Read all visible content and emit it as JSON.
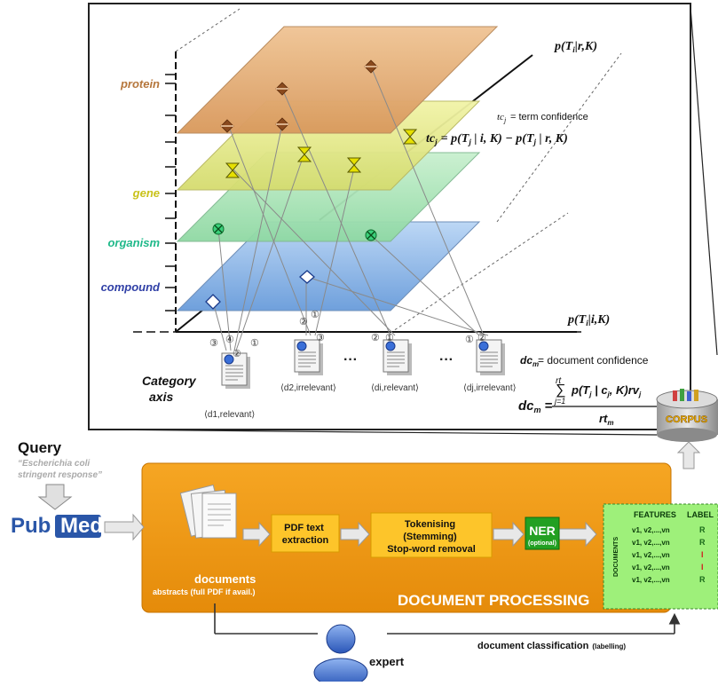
{
  "category_axis": {
    "title_line1": "Category",
    "title_line2": "axis",
    "categories": [
      {
        "label": "protein",
        "color": "#b5763c"
      },
      {
        "label": "gene",
        "color": "#c9c21a"
      },
      {
        "label": "organism",
        "color": "#20b98a"
      },
      {
        "label": "compound",
        "color": "#2f3fa6"
      }
    ]
  },
  "formulas": {
    "p_relevant": "p(T",
    "p_relevant_sub": "i",
    "p_relevant_tail": "|r,K)",
    "p_irrelevant": "p(T",
    "p_irrelevant_sub": "i",
    "p_irrelevant_tail": "|i,K)",
    "tc_def": "= term confidence",
    "tc_symbol": "tc",
    "tc_sub": "j",
    "tc_formula": "= p(T",
    "tc_formula_mid": " | i, K) − p(T",
    "tc_formula_tail": " | r, K)",
    "dc_def": "= document confidence",
    "dc_symbol": "dc",
    "dc_sub": "m",
    "dc_numerator": "p(T",
    "dc_numerator_tail": " | c",
    "dc_numerator_end": ", K)rv",
    "dc_sum_top": "rt",
    "dc_sum_bottom": "j=1",
    "dc_denominator": "rt"
  },
  "documents": [
    {
      "label": "⟨d1,relevant⟩",
      "markers": [
        "③",
        "④",
        "②",
        "①"
      ]
    },
    {
      "label": "⟨d2,irrelevant⟩",
      "markers": [
        "②",
        "①",
        "③"
      ]
    },
    {
      "label": "⟨di,relevant⟩",
      "markers": [
        "②",
        "①"
      ]
    },
    {
      "label": "⟨dj,irrelevant⟩",
      "markers": [
        "①",
        "②"
      ]
    }
  ],
  "ellipsis": "···",
  "query": {
    "title": "Query",
    "text_line1": "“Escherichia coli",
    "text_line2": "stringent response”"
  },
  "pubmed": {
    "part1": "Pub",
    "part2": "Med"
  },
  "processing": {
    "documents_label": "documents",
    "documents_sub": "abstracts (full PDF if avail.)",
    "pdf_step_line1": "PDF text",
    "pdf_step_line2": "extraction",
    "token_line1": "Tokenising",
    "token_line2": "(Stemming)",
    "token_line3": "Stop-word removal",
    "ner_title": "NER",
    "ner_sub": "(optional)",
    "banner": "DOCUMENT PROCESSING"
  },
  "feature_table": {
    "header_features": "FEATURES",
    "header_label": "LABEL",
    "side_label": "DOCUMENTS",
    "rows": [
      {
        "features": "v1, v2,...,vn",
        "label": "R"
      },
      {
        "features": "v1, v2,...,vn",
        "label": "R"
      },
      {
        "features": "v1, v2,...,vn",
        "label": "I"
      },
      {
        "features": "v1, v2,...,vn",
        "label": "I"
      },
      {
        "features": "v1, v2,...,vn",
        "label": "R"
      }
    ]
  },
  "corpus_label": "CORPUS",
  "expert_label": "expert",
  "classification_label": "document classification",
  "classification_sub": "(labelling)"
}
